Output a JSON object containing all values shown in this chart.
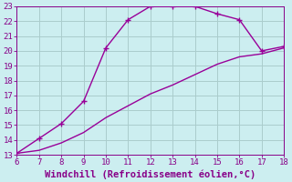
{
  "xlabel": "Windchill (Refroidissement éolien,°C)",
  "xlim": [
    6,
    18
  ],
  "ylim": [
    13,
    23
  ],
  "xticks": [
    6,
    7,
    8,
    9,
    10,
    11,
    12,
    13,
    14,
    15,
    16,
    17,
    18
  ],
  "yticks": [
    13,
    14,
    15,
    16,
    17,
    18,
    19,
    20,
    21,
    22,
    23
  ],
  "background_color": "#cceef0",
  "grid_color": "#aacccc",
  "line_color": "#990099",
  "curve1_x": [
    6,
    7,
    8,
    9,
    10,
    11,
    12,
    13,
    14,
    15,
    16,
    17,
    18
  ],
  "curve1_y": [
    13.1,
    14.1,
    15.1,
    16.6,
    20.2,
    22.1,
    23.0,
    23.0,
    23.0,
    22.5,
    22.1,
    20.0,
    20.3
  ],
  "curve2_x": [
    6,
    7,
    8,
    9,
    10,
    11,
    12,
    13,
    14,
    15,
    16,
    17,
    18
  ],
  "curve2_y": [
    13.1,
    13.3,
    13.8,
    14.5,
    15.5,
    16.3,
    17.1,
    17.7,
    18.4,
    19.1,
    19.6,
    19.8,
    20.2
  ],
  "marker": "+",
  "marker_size": 4,
  "line_width": 1.0,
  "font_color": "#880088",
  "tick_fontsize": 6.5,
  "label_fontsize": 7.5
}
